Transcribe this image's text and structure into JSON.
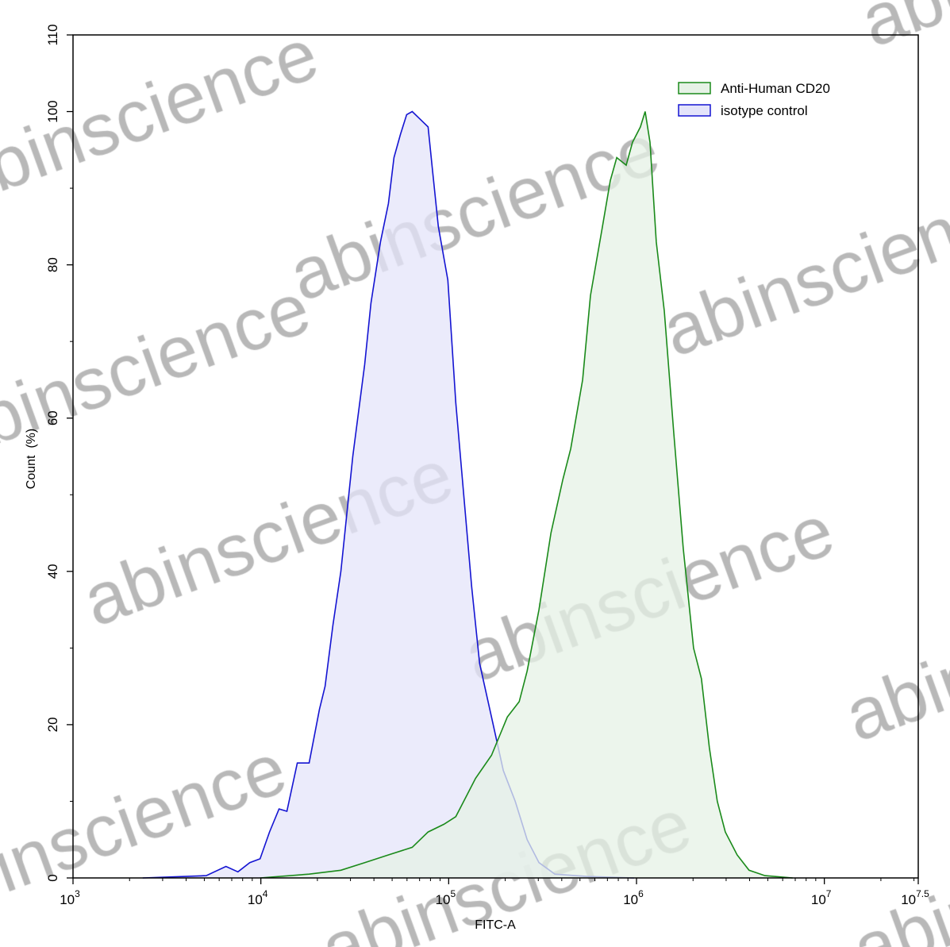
{
  "chart_data": {
    "type": "area",
    "title": "",
    "xlabel": "FITC-A",
    "ylabel": "Count  (%)",
    "x_scale": "log10",
    "xlim": [
      1000,
      31622777
    ],
    "ylim": [
      0,
      110
    ],
    "x_tick_labels": [
      {
        "base": "10",
        "exp": "3",
        "value": 1000
      },
      {
        "base": "10",
        "exp": "4",
        "value": 10000
      },
      {
        "base": "10",
        "exp": "5",
        "value": 100000
      },
      {
        "base": "10",
        "exp": "6",
        "value": 1000000
      },
      {
        "base": "10",
        "exp": "7",
        "value": 10000000
      },
      {
        "base": "10",
        "exp": "7.5",
        "value": 31622777
      }
    ],
    "y_ticks": [
      0,
      20,
      40,
      60,
      80,
      100,
      110
    ],
    "grid": false,
    "legend_position": "top-right",
    "series": [
      {
        "name": "Anti-Human CD20",
        "stroke": "#1a8a1a",
        "fill": "#e6f2e6",
        "x": [
          9910,
          18080,
          26680,
          35700,
          47760,
          63960,
          77690,
          94330,
          109100,
          126200,
          139000,
          169000,
          205100,
          237500,
          261600,
          302600,
          350200,
          405300,
          446500,
          516600,
          568900,
          658700,
          725600,
          785000,
          881000,
          952600,
          1049000,
          1112000,
          1180000,
          1274000,
          1405000,
          1579000,
          1773000,
          2012000,
          2217000,
          2443000,
          2692000,
          2969000,
          3434000,
          3972000,
          4827000,
          6778000
        ],
        "y": [
          0,
          0.5,
          1,
          2,
          3,
          4,
          6,
          7,
          8,
          11,
          13,
          16,
          21,
          23,
          27,
          35,
          45,
          52,
          56,
          65,
          76,
          85,
          91,
          94,
          93,
          96,
          98,
          100,
          96,
          83,
          74,
          58,
          43,
          30,
          26,
          17,
          10,
          6,
          3,
          1,
          0.3,
          0
        ]
      },
      {
        "name": "isotype control",
        "stroke": "#1414d2",
        "fill": "#e4e4fa",
        "x": [
          2350,
          5120,
          6520,
          7550,
          8730,
          9910,
          11120,
          12500,
          13770,
          15630,
          18080,
          20510,
          21970,
          24210,
          26680,
          30850,
          35700,
          38570,
          43340,
          47760,
          51150,
          55310,
          59760,
          63960,
          70490,
          77690,
          81530,
          88130,
          99020,
          109100,
          120300,
          132500,
          146100,
          169000,
          195500,
          226100,
          261600,
          302600,
          367500,
          542000,
          971000
        ],
        "y": [
          0,
          0.3,
          1.5,
          0.8,
          2,
          2.5,
          6,
          9,
          8.7,
          15,
          15,
          22,
          25,
          33,
          40,
          55,
          67,
          75,
          83,
          88,
          94,
          97,
          99.6,
          100,
          99,
          98,
          93,
          85,
          78,
          62,
          50,
          38,
          28,
          21,
          14,
          10,
          5,
          2,
          0.5,
          0.2,
          0
        ]
      }
    ]
  },
  "watermark": "abinscience"
}
